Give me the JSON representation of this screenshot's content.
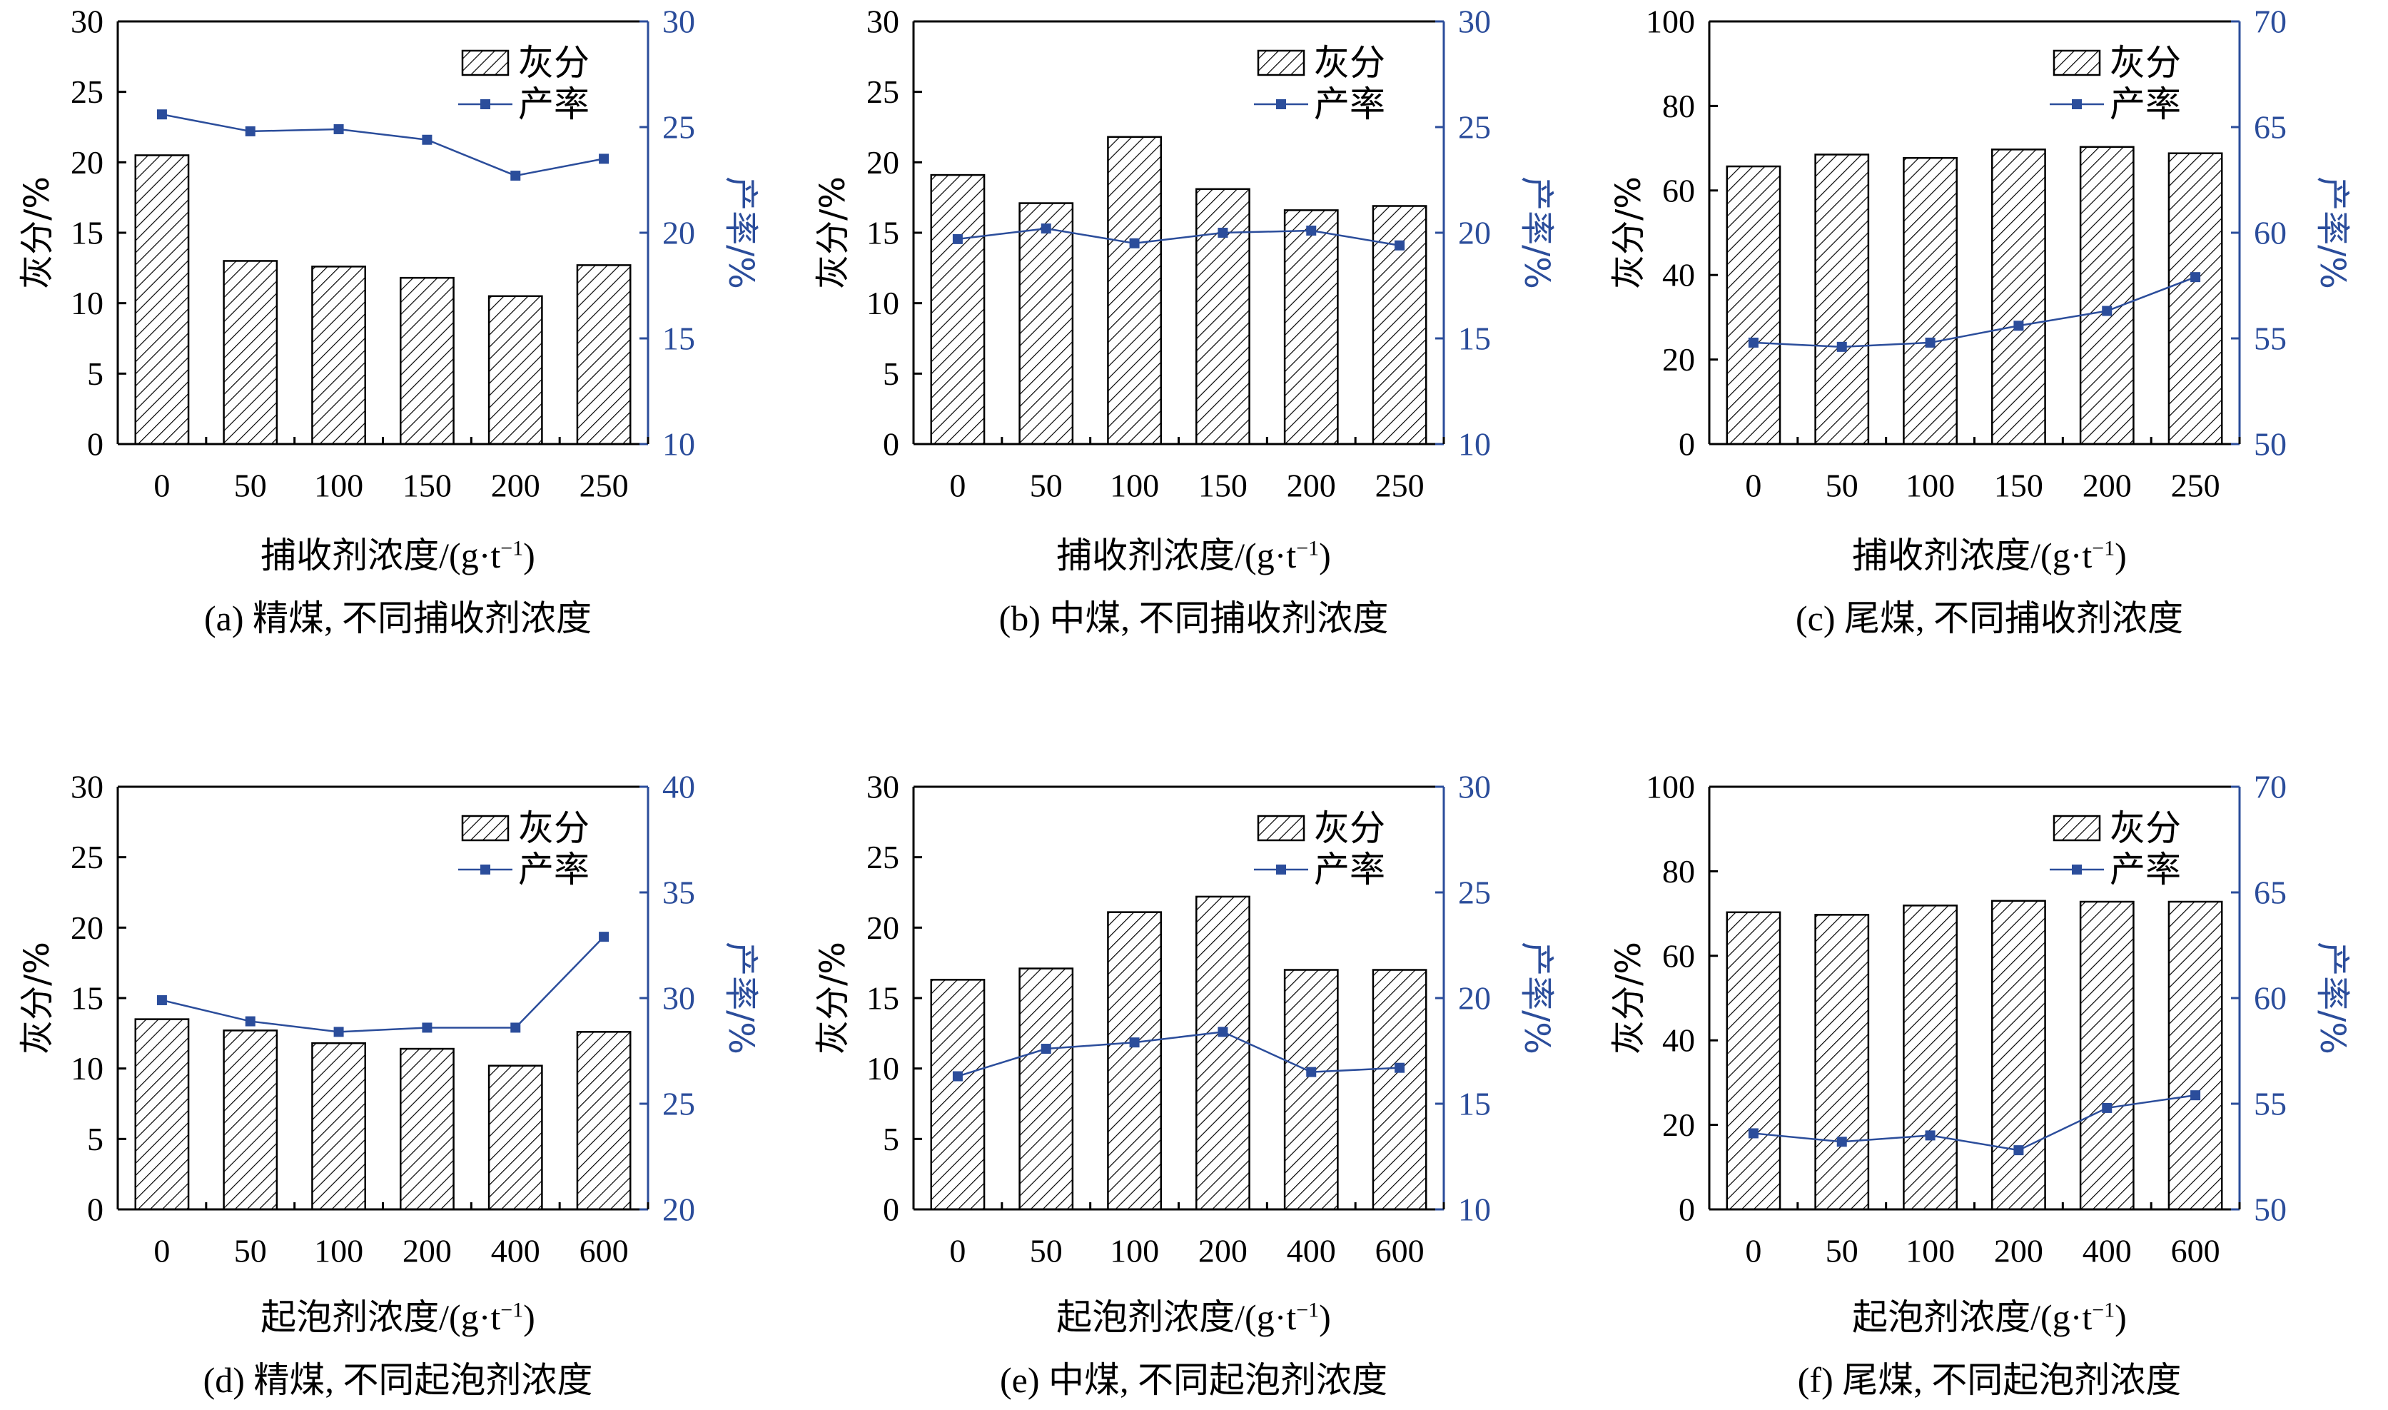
{
  "colors": {
    "line": "#2b4d9b",
    "bar_stroke": "#000000",
    "right_axis": "#2b4d9b"
  },
  "chart_data": [
    {
      "id": "a",
      "type": "bar+line",
      "caption": "(a) 精煤, 不同捕收剂浓度",
      "xlabel": "捕收剂浓度/(g·t",
      "xlabel_sup": "−1",
      "xlabel_tail": ")",
      "ylabel_left": "灰分/%",
      "ylabel_right": "产率/%",
      "legend": {
        "bar": "灰分",
        "line": "产率",
        "placement": "top-right"
      },
      "categories": [
        "0",
        "50",
        "100",
        "150",
        "200",
        "250"
      ],
      "ylim_left": [
        0,
        30
      ],
      "yticks_left": [
        0,
        5,
        10,
        15,
        20,
        25,
        30
      ],
      "ylim_right": [
        10,
        30
      ],
      "yticks_right": [
        10,
        15,
        20,
        25,
        30
      ],
      "series": [
        {
          "kind": "bar",
          "axis": "left",
          "values": [
            20.5,
            13.0,
            12.6,
            11.8,
            10.5,
            12.7
          ]
        },
        {
          "kind": "line",
          "axis": "right",
          "values": [
            25.6,
            24.8,
            24.9,
            24.4,
            22.7,
            23.5
          ]
        }
      ]
    },
    {
      "id": "b",
      "type": "bar+line",
      "caption": "(b) 中煤, 不同捕收剂浓度",
      "xlabel": "捕收剂浓度/(g·t",
      "xlabel_sup": "−1",
      "xlabel_tail": ")",
      "ylabel_left": "灰分/%",
      "ylabel_right": "产率/%",
      "legend": {
        "bar": "灰分",
        "line": "产率",
        "placement": "top-right"
      },
      "categories": [
        "0",
        "50",
        "100",
        "150",
        "200",
        "250"
      ],
      "ylim_left": [
        0,
        30
      ],
      "yticks_left": [
        0,
        5,
        10,
        15,
        20,
        25,
        30
      ],
      "ylim_right": [
        10,
        30
      ],
      "yticks_right": [
        10,
        15,
        20,
        25,
        30
      ],
      "series": [
        {
          "kind": "bar",
          "axis": "left",
          "values": [
            19.1,
            17.1,
            21.8,
            18.1,
            16.6,
            16.9
          ]
        },
        {
          "kind": "line",
          "axis": "right",
          "values": [
            19.7,
            20.2,
            19.5,
            20.0,
            20.1,
            19.4
          ]
        }
      ]
    },
    {
      "id": "c",
      "type": "bar+line",
      "caption": "(c) 尾煤, 不同捕收剂浓度",
      "xlabel": "捕收剂浓度/(g·t",
      "xlabel_sup": "−1",
      "xlabel_tail": ")",
      "ylabel_left": "灰分/%",
      "ylabel_right": "产率/%",
      "legend": {
        "bar": "灰分",
        "line": "产率",
        "placement": "top-right"
      },
      "categories": [
        "0",
        "50",
        "100",
        "150",
        "200",
        "250"
      ],
      "ylim_left": [
        0,
        100
      ],
      "yticks_left": [
        0,
        20,
        40,
        60,
        80,
        100
      ],
      "ylim_right": [
        50,
        70
      ],
      "yticks_right": [
        50,
        55,
        60,
        65,
        70
      ],
      "series": [
        {
          "kind": "bar",
          "axis": "left",
          "values": [
            65.7,
            68.5,
            67.7,
            69.7,
            70.3,
            68.8
          ]
        },
        {
          "kind": "line",
          "axis": "right",
          "values": [
            54.8,
            54.6,
            54.8,
            55.6,
            56.3,
            57.9
          ]
        }
      ]
    },
    {
      "id": "d",
      "type": "bar+line",
      "caption": "(d) 精煤, 不同起泡剂浓度",
      "xlabel": "起泡剂浓度/(g·t",
      "xlabel_sup": "−1",
      "xlabel_tail": ")",
      "ylabel_left": "灰分/%",
      "ylabel_right": "产率/%",
      "legend": {
        "bar": "灰分",
        "line": "产率",
        "placement": "top-right"
      },
      "categories": [
        "0",
        "50",
        "100",
        "200",
        "400",
        "600"
      ],
      "ylim_left": [
        0,
        30
      ],
      "yticks_left": [
        0,
        5,
        10,
        15,
        20,
        25,
        30
      ],
      "ylim_right": [
        20,
        40
      ],
      "yticks_right": [
        20,
        25,
        30,
        35,
        40
      ],
      "series": [
        {
          "kind": "bar",
          "axis": "left",
          "values": [
            13.5,
            12.7,
            11.8,
            11.4,
            10.2,
            12.6
          ]
        },
        {
          "kind": "line",
          "axis": "right",
          "values": [
            29.9,
            28.9,
            28.4,
            28.6,
            28.6,
            32.9
          ]
        }
      ]
    },
    {
      "id": "e",
      "type": "bar+line",
      "caption": "(e) 中煤, 不同起泡剂浓度",
      "xlabel": "起泡剂浓度/(g·t",
      "xlabel_sup": "−1",
      "xlabel_tail": ")",
      "ylabel_left": "灰分/%",
      "ylabel_right": "产率/%",
      "legend": {
        "bar": "灰分",
        "line": "产率",
        "placement": "top-right"
      },
      "categories": [
        "0",
        "50",
        "100",
        "200",
        "400",
        "600"
      ],
      "ylim_left": [
        0,
        30
      ],
      "yticks_left": [
        0,
        5,
        10,
        15,
        20,
        25,
        30
      ],
      "ylim_right": [
        10,
        30
      ],
      "yticks_right": [
        10,
        15,
        20,
        25,
        30
      ],
      "series": [
        {
          "kind": "bar",
          "axis": "left",
          "values": [
            16.3,
            17.1,
            21.1,
            22.2,
            17.0,
            17.0
          ]
        },
        {
          "kind": "line",
          "axis": "right",
          "values": [
            16.3,
            17.6,
            17.9,
            18.4,
            16.5,
            16.7
          ]
        }
      ]
    },
    {
      "id": "f",
      "type": "bar+line",
      "caption": "(f) 尾煤, 不同起泡剂浓度",
      "xlabel": "起泡剂浓度/(g·t",
      "xlabel_sup": "−1",
      "xlabel_tail": ")",
      "ylabel_left": "灰分/%",
      "ylabel_right": "产率/%",
      "legend": {
        "bar": "灰分",
        "line": "产率",
        "placement": "top-right"
      },
      "categories": [
        "0",
        "50",
        "100",
        "200",
        "400",
        "600"
      ],
      "ylim_left": [
        0,
        100
      ],
      "yticks_left": [
        0,
        20,
        40,
        60,
        80,
        100
      ],
      "ylim_right": [
        50,
        70
      ],
      "yticks_right": [
        50,
        55,
        60,
        65,
        70
      ],
      "series": [
        {
          "kind": "bar",
          "axis": "left",
          "values": [
            70.3,
            69.7,
            71.9,
            73.0,
            72.8,
            72.8
          ]
        },
        {
          "kind": "line",
          "axis": "right",
          "values": [
            53.6,
            53.2,
            53.5,
            52.8,
            54.8,
            55.4
          ]
        }
      ]
    }
  ]
}
